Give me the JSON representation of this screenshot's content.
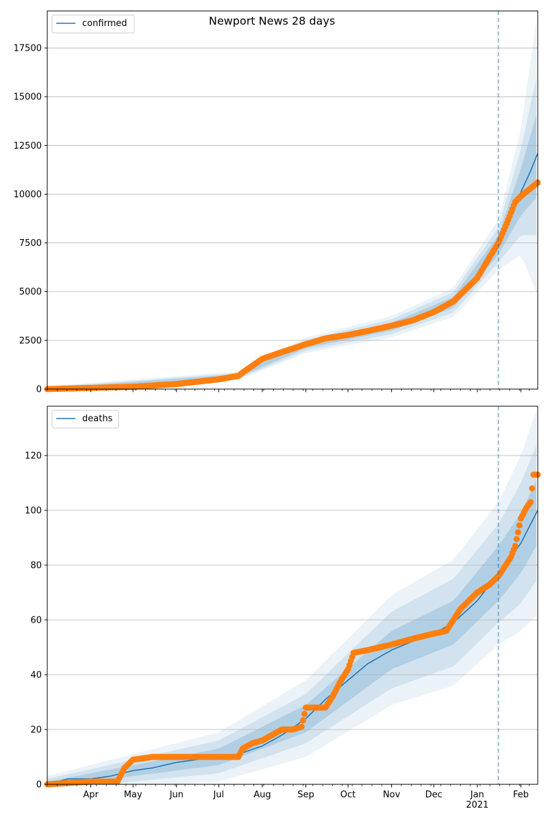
{
  "figure": {
    "title": "Newport News 28 days"
  },
  "chart_data": [
    {
      "type": "line",
      "title": "Newport News 28 days",
      "legend": [
        "confirmed"
      ],
      "legend_position": "top-left",
      "grid": "horizontal",
      "ylim": [
        0,
        19400
      ],
      "yticks": [
        0,
        2500,
        5000,
        7500,
        10000,
        12500,
        15000,
        17500
      ],
      "ytick_labels": [
        "0",
        "2500",
        "5000",
        "7500",
        "10000",
        "12500",
        "15000",
        "17500"
      ],
      "xlim": [
        "2020-03-01",
        "2021-02-13"
      ],
      "forecast_start": "2021-01-16",
      "series": [
        {
          "name": "confirmed",
          "kind": "model-line",
          "color": "#1f77b4",
          "x": [
            "2020-03-01",
            "2020-04-01",
            "2020-05-01",
            "2020-06-01",
            "2020-07-01",
            "2020-07-15",
            "2020-07-20",
            "2020-08-01",
            "2020-08-15",
            "2020-09-01",
            "2020-09-15",
            "2020-10-01",
            "2020-10-15",
            "2020-11-01",
            "2020-11-15",
            "2020-12-01",
            "2020-12-15",
            "2021-01-01",
            "2021-01-10",
            "2021-01-16",
            "2021-01-25",
            "2021-02-01",
            "2021-02-08",
            "2021-02-13"
          ],
          "y": [
            0,
            60,
            120,
            260,
            500,
            680,
            850,
            1500,
            1850,
            2250,
            2550,
            2750,
            2950,
            3200,
            3450,
            3850,
            4450,
            5700,
            6700,
            7400,
            8900,
            10100,
            11200,
            12100
          ]
        },
        {
          "name": "observed",
          "kind": "scatter",
          "color": "#ff7f0e",
          "x": [
            "2020-03-01",
            "2020-04-01",
            "2020-05-01",
            "2020-06-01",
            "2020-07-01",
            "2020-07-15",
            "2020-07-20",
            "2020-08-01",
            "2020-08-15",
            "2020-09-01",
            "2020-09-15",
            "2020-10-01",
            "2020-10-15",
            "2020-11-01",
            "2020-11-15",
            "2020-12-01",
            "2020-12-15",
            "2021-01-01",
            "2021-01-10",
            "2021-01-16",
            "2021-01-22",
            "2021-01-28",
            "2021-02-01",
            "2021-02-08",
            "2021-02-13"
          ],
          "y": [
            0,
            60,
            120,
            260,
            500,
            680,
            950,
            1550,
            1900,
            2300,
            2600,
            2780,
            2980,
            3250,
            3500,
            3950,
            4500,
            5700,
            6800,
            7500,
            8500,
            9600,
            9900,
            10300,
            10600
          ]
        }
      ],
      "bands": {
        "color": "#1f77b4",
        "x": [
          "2020-03-01",
          "2020-07-15",
          "2020-09-01",
          "2020-11-01",
          "2020-12-15",
          "2021-01-16",
          "2021-02-01",
          "2021-02-13"
        ],
        "center": [
          0,
          680,
          2250,
          3200,
          4450,
          7400,
          10100,
          12100
        ],
        "half_widths": [
          [
            50,
            80,
            150,
            200,
            280,
            500,
            1200,
            2200
          ],
          [
            100,
            150,
            280,
            380,
            520,
            900,
            2200,
            4200
          ],
          [
            150,
            220,
            400,
            550,
            750,
            1300,
            3200,
            7300
          ]
        ]
      }
    },
    {
      "type": "line",
      "title": "",
      "legend": [
        "deaths"
      ],
      "legend_position": "top-left",
      "grid": "horizontal",
      "ylim": [
        0,
        138
      ],
      "yticks": [
        0,
        20,
        40,
        60,
        80,
        100,
        120
      ],
      "ytick_labels": [
        "0",
        "20",
        "40",
        "60",
        "80",
        "100",
        "120"
      ],
      "xlim": [
        "2020-03-01",
        "2021-02-13"
      ],
      "xticks": [
        "2020-04-01",
        "2020-05-01",
        "2020-06-01",
        "2020-07-01",
        "2020-08-01",
        "2020-09-01",
        "2020-10-01",
        "2020-11-01",
        "2020-12-01",
        "2021-01-01",
        "2021-02-01"
      ],
      "xtick_labels": [
        "Apr",
        "May",
        "Jun",
        "Jul",
        "Aug",
        "Sep",
        "Oct",
        "Nov",
        "Dec",
        "Jan\n2021",
        "Feb"
      ],
      "forecast_start": "2021-01-16",
      "series": [
        {
          "name": "deaths",
          "kind": "model-line",
          "color": "#1f77b4",
          "x": [
            "2020-03-01",
            "2020-03-16",
            "2020-04-01",
            "2020-04-15",
            "2020-05-01",
            "2020-05-15",
            "2020-06-01",
            "2020-06-15",
            "2020-07-01",
            "2020-07-15",
            "2020-08-01",
            "2020-08-15",
            "2020-09-01",
            "2020-09-15",
            "2020-10-01",
            "2020-10-15",
            "2020-11-01",
            "2020-11-15",
            "2020-12-01",
            "2020-12-15",
            "2021-01-01",
            "2021-01-16",
            "2021-02-01",
            "2021-02-13"
          ],
          "y": [
            0,
            2,
            2,
            3,
            5,
            6,
            8,
            9,
            10,
            11,
            14,
            18,
            24,
            31,
            38,
            44,
            49,
            52,
            55,
            59,
            67,
            77,
            88,
            100
          ]
        },
        {
          "name": "observed",
          "kind": "scatter",
          "color": "#ff7f0e",
          "x": [
            "2020-03-01",
            "2020-04-01",
            "2020-04-20",
            "2020-04-25",
            "2020-05-01",
            "2020-05-15",
            "2020-06-01",
            "2020-06-15",
            "2020-07-01",
            "2020-07-15",
            "2020-07-18",
            "2020-07-25",
            "2020-08-01",
            "2020-08-08",
            "2020-08-15",
            "2020-08-22",
            "2020-08-29",
            "2020-09-01",
            "2020-09-15",
            "2020-09-20",
            "2020-09-25",
            "2020-10-01",
            "2020-10-05",
            "2020-10-15",
            "2020-11-01",
            "2020-11-15",
            "2020-12-01",
            "2020-12-10",
            "2020-12-20",
            "2021-01-01",
            "2021-01-10",
            "2021-01-16",
            "2021-01-20",
            "2021-01-25",
            "2021-01-28",
            "2021-02-01",
            "2021-02-05",
            "2021-02-08",
            "2021-02-10",
            "2021-02-13"
          ],
          "y": [
            0,
            1,
            1,
            6,
            9,
            10,
            10,
            10,
            10,
            10,
            13,
            15,
            16,
            18,
            20,
            20,
            21,
            28,
            28,
            32,
            37,
            42,
            48,
            49,
            51,
            53,
            55,
            56,
            64,
            70,
            73,
            76,
            79,
            83,
            87,
            97,
            101,
            103,
            113,
            113
          ]
        }
      ],
      "bands": {
        "color": "#1f77b4",
        "x": [
          "2020-03-01",
          "2020-05-01",
          "2020-07-01",
          "2020-09-01",
          "2020-11-01",
          "2020-12-15",
          "2021-01-16",
          "2021-02-01",
          "2021-02-13"
        ],
        "center": [
          0,
          5,
          10,
          24,
          49,
          59,
          77,
          88,
          100
        ],
        "half_widths": [
          [
            1,
            2,
            3,
            5,
            7,
            8,
            10,
            11,
            12
          ],
          [
            2,
            4,
            6,
            9,
            14,
            16,
            18,
            22,
            25
          ],
          [
            3,
            6,
            9,
            14,
            20,
            23,
            26,
            32,
            38
          ]
        ]
      }
    }
  ]
}
